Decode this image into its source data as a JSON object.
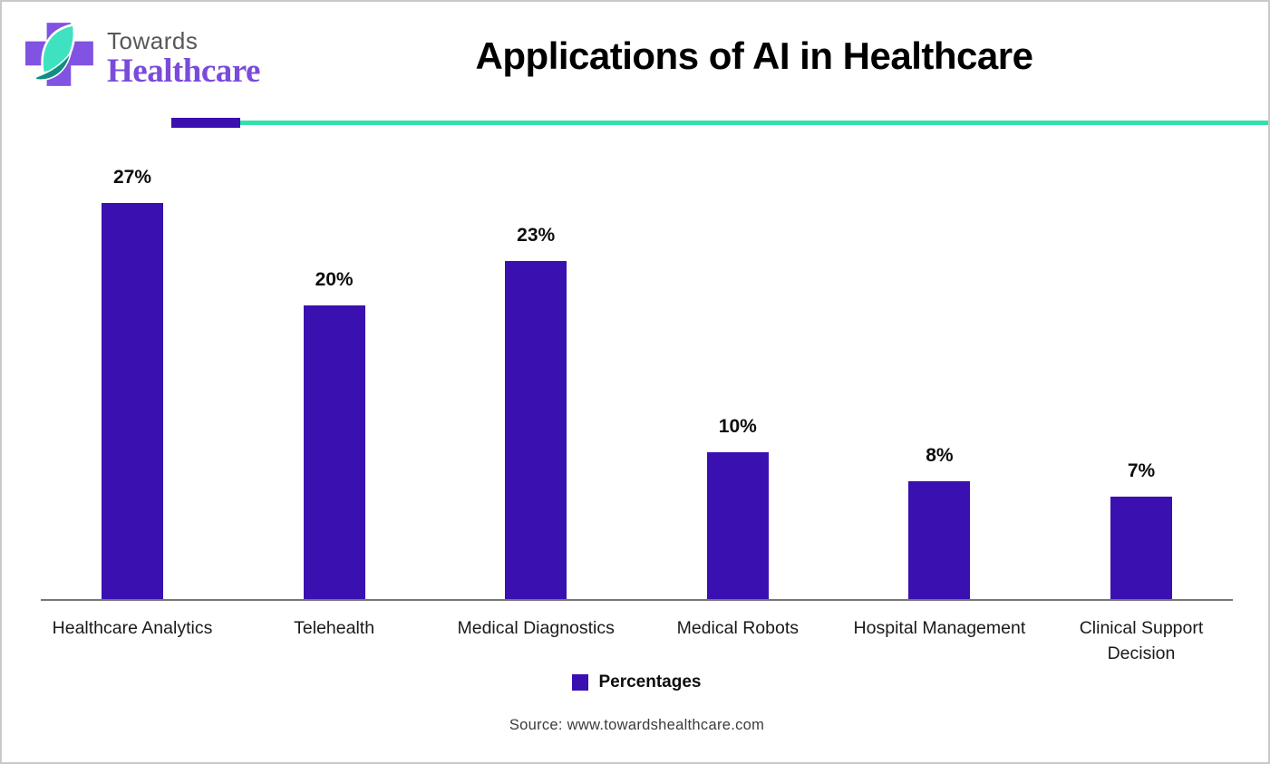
{
  "brand": {
    "towards": "Towards",
    "healthcare": "Healthcare"
  },
  "header": {
    "title": "Applications of AI in Healthcare"
  },
  "chart_data": {
    "type": "bar",
    "title": "Applications of AI in Healthcare",
    "categories": [
      "Healthcare Analytics",
      "Telehealth",
      "Medical Diagnostics",
      "Medical Robots",
      "Hospital Management",
      "Clinical Support Decision"
    ],
    "values": [
      27,
      20,
      23,
      10,
      8,
      7
    ],
    "value_labels": [
      "27%",
      "20%",
      "23%",
      "10%",
      "8%",
      "7%"
    ],
    "series_name": "Percentages",
    "xlabel": "",
    "ylabel": "",
    "ylim": [
      0,
      27
    ],
    "grid": false,
    "y_axis_visible": false,
    "legend_position": "bottom",
    "bar_color": "#3b10b1"
  },
  "legend": {
    "label": "Percentages",
    "swatch_color": "#3b10b1"
  },
  "source": {
    "text": "Source: www.towardshealthcare.com"
  },
  "colors": {
    "bar": "#3b10b1",
    "divider_purple": "#3b10b1",
    "divider_teal": "#35dfad",
    "axis": "#777777",
    "logo_cross": "#8153e2",
    "logo_leaf": "#3fe2c0",
    "logo_swoosh": "#0e8f80",
    "brand_towards": "#58585a",
    "brand_healthcare": "#7a4bdb"
  }
}
